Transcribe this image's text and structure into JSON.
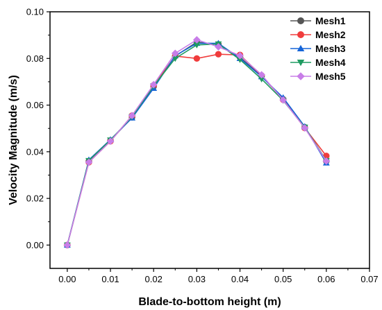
{
  "chart_data": {
    "type": "line",
    "title": "",
    "xlabel": "Blade-to-bottom height (m)",
    "ylabel": "Velocity Magnitude (m/s)",
    "xlim": [
      -0.004,
      0.07
    ],
    "ylim": [
      -0.01,
      0.1
    ],
    "x_ticks": [
      "0.00",
      "0.01",
      "0.02",
      "0.03",
      "0.04",
      "0.05",
      "0.06",
      "0.07"
    ],
    "y_ticks": [
      "0.00",
      "0.02",
      "0.04",
      "0.06",
      "0.08",
      "0.10"
    ],
    "legend_position": "top-right",
    "grid": false,
    "x": [
      0.0,
      0.005,
      0.01,
      0.015,
      0.02,
      0.025,
      0.03,
      0.035,
      0.04,
      0.045,
      0.05,
      0.055,
      0.06
    ],
    "series": [
      {
        "name": "Mesh1",
        "color": "#555555",
        "marker": "circle",
        "values": [
          0.0,
          0.036,
          0.0448,
          0.0548,
          0.068,
          0.081,
          0.087,
          0.086,
          0.0805,
          0.0725,
          0.0625,
          0.0505,
          0.036
        ]
      },
      {
        "name": "Mesh2",
        "color": "#f03c3c",
        "marker": "circle",
        "values": [
          0.0,
          0.0355,
          0.0445,
          0.0555,
          0.0685,
          0.081,
          0.08,
          0.0818,
          0.0815,
          0.0727,
          0.0623,
          0.0502,
          0.0382
        ]
      },
      {
        "name": "Mesh3",
        "color": "#1565d8",
        "marker": "triangle-up",
        "values": [
          0.0,
          0.0365,
          0.0452,
          0.0545,
          0.0672,
          0.0812,
          0.0865,
          0.0865,
          0.08,
          0.0722,
          0.0632,
          0.0508,
          0.0352
        ]
      },
      {
        "name": "Mesh4",
        "color": "#1f9b61",
        "marker": "triangle-down",
        "values": [
          0.0,
          0.0362,
          0.045,
          0.055,
          0.0682,
          0.08,
          0.0858,
          0.0862,
          0.0795,
          0.0712,
          0.062,
          0.0505,
          0.0362
        ]
      },
      {
        "name": "Mesh5",
        "color": "#c87ee8",
        "marker": "diamond",
        "values": [
          0.0,
          0.0355,
          0.0445,
          0.0555,
          0.0688,
          0.0822,
          0.088,
          0.085,
          0.0812,
          0.073,
          0.0622,
          0.0502,
          0.036
        ]
      }
    ]
  }
}
